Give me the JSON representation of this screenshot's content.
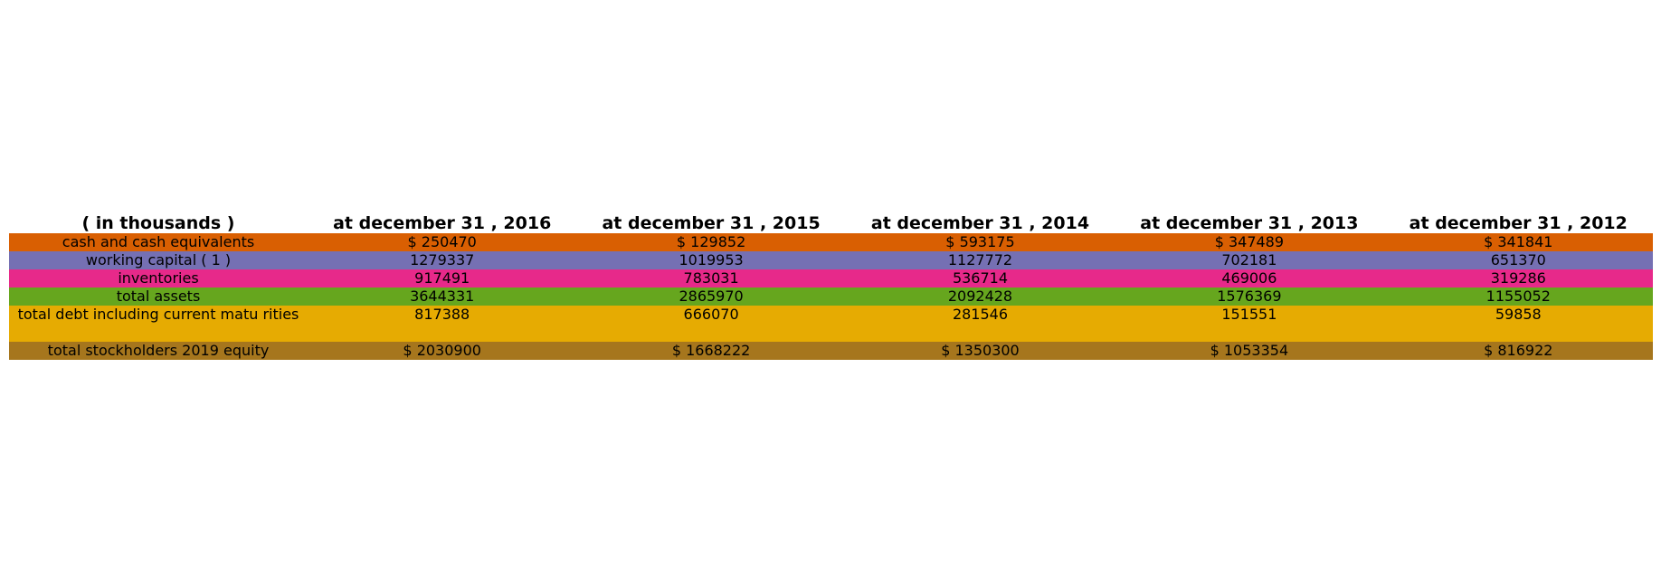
{
  "chart_data": {
    "type": "table",
    "columns": [
      "( in thousands )",
      "at december 31 , 2016",
      "at december 31 , 2015",
      "at december 31 , 2014",
      "at december 31 , 2013",
      "at december 31 , 2012"
    ],
    "rows": [
      {
        "label": "cash and cash equivalents",
        "color": "#d95f02",
        "values": [
          "$ 250470",
          "$ 129852",
          "$ 593175",
          "$ 347489",
          "$ 341841"
        ]
      },
      {
        "label": "working capital ( 1 )",
        "color": "#7570b3",
        "values": [
          "1279337",
          "1019953",
          "1127772",
          "702181",
          "651370"
        ]
      },
      {
        "label": "inventories",
        "color": "#e7298a",
        "values": [
          "917491",
          "783031",
          "536714",
          "469006",
          "319286"
        ]
      },
      {
        "label": "total assets",
        "color": "#66a61e",
        "values": [
          "3644331",
          "2865970",
          "2092428",
          "1576369",
          "1155052"
        ]
      },
      {
        "label": "total debt including current matu rities",
        "color": "#e6ab02",
        "values": [
          "817388",
          "666070",
          "281546",
          "151551",
          "59858"
        ]
      },
      {
        "label": "total stockholders 2019 equity",
        "color": "#a6761d",
        "values": [
          "$ 2030900",
          "$ 1668222",
          "$ 1350300",
          "$ 1053354",
          "$ 816922"
        ]
      }
    ]
  }
}
